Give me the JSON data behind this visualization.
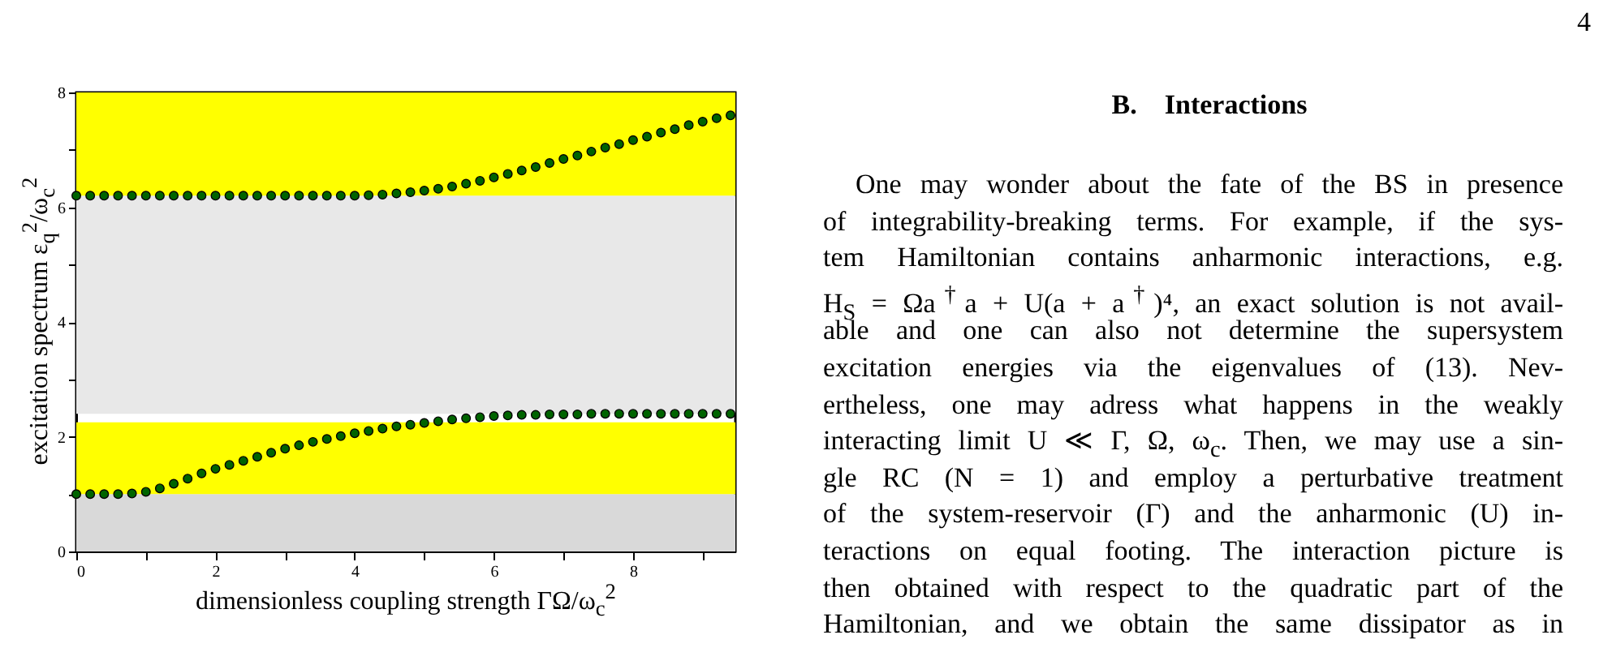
{
  "chart_data": {
    "type": "scatter",
    "xlabel": "dimensionless coupling strength ΓΩ/ω$_{c}$$^{2}$",
    "ylabel": "excitation spectrum ε$_{q}$$^{2}$/ω$_{c}$$^{2}$",
    "xlim": [
      0,
      9.47
    ],
    "ylim": [
      0,
      8
    ],
    "xticks": [
      0,
      {
        "value": 1,
        "label": null
      },
      2,
      {
        "value": 3,
        "label": null
      },
      4,
      {
        "value": 5,
        "label": null
      },
      6,
      {
        "value": 7,
        "label": null
      },
      8,
      {
        "value": 9,
        "label": null
      }
    ],
    "yticks": [
      0,
      {
        "value": 1,
        "label": null
      },
      2,
      {
        "value": 3,
        "label": null
      },
      4,
      {
        "value": 5,
        "label": null
      },
      6,
      {
        "value": 7,
        "label": null
      },
      8
    ],
    "marker": "circle",
    "grid": false,
    "bands": [
      {
        "axis": "y",
        "from": 0,
        "to": 1.0,
        "color": "#d9d9d9"
      },
      {
        "axis": "y",
        "from": 1.0,
        "to": 2.25,
        "color": "#ffff00"
      },
      {
        "axis": "y",
        "from": 2.4,
        "to": 6.2,
        "color": "#e8e8e8"
      },
      {
        "axis": "y",
        "from": 6.2,
        "to": 8,
        "color": "#ffff00"
      }
    ],
    "series": [
      {
        "color": "#006400",
        "x": [
          0,
          0.2,
          0.4,
          0.6,
          0.8,
          1.0,
          1.2,
          1.4,
          1.6,
          1.8,
          2.0,
          2.2,
          2.4,
          2.6,
          2.8,
          3.0,
          3.2,
          3.4,
          3.6,
          3.8,
          4.0,
          4.2,
          4.4,
          4.6,
          4.8,
          5.0,
          5.2,
          5.4,
          5.6,
          5.8,
          6.0,
          6.2,
          6.4,
          6.6,
          6.8,
          7.0,
          7.2,
          7.4,
          7.6,
          7.8,
          8.0,
          8.2,
          8.4,
          8.6,
          8.8,
          9.0,
          9.2,
          9.4
        ],
        "values": [
          1.0,
          1.0,
          1.0,
          1.0,
          1.01,
          1.04,
          1.1,
          1.18,
          1.27,
          1.36,
          1.44,
          1.51,
          1.58,
          1.65,
          1.72,
          1.79,
          1.85,
          1.91,
          1.96,
          2.01,
          2.06,
          2.1,
          2.14,
          2.18,
          2.21,
          2.24,
          2.27,
          2.3,
          2.32,
          2.34,
          2.36,
          2.37,
          2.38,
          2.38,
          2.39,
          2.39,
          2.39,
          2.4,
          2.4,
          2.4,
          2.4,
          2.4,
          2.4,
          2.4,
          2.4,
          2.4,
          2.4,
          2.4
        ]
      },
      {
        "color": "#006400",
        "x": [
          0,
          0.2,
          0.4,
          0.6,
          0.8,
          1.0,
          1.2,
          1.4,
          1.6,
          1.8,
          2.0,
          2.2,
          2.4,
          2.6,
          2.8,
          3.0,
          3.2,
          3.4,
          3.6,
          3.8,
          4.0,
          4.2,
          4.4,
          4.6,
          4.8,
          5.0,
          5.2,
          5.4,
          5.6,
          5.8,
          6.0,
          6.2,
          6.4,
          6.6,
          6.8,
          7.0,
          7.2,
          7.4,
          7.6,
          7.8,
          8.0,
          8.2,
          8.4,
          8.6,
          8.8,
          9.0,
          9.2,
          9.4
        ],
        "values": [
          6.2,
          6.2,
          6.2,
          6.2,
          6.2,
          6.2,
          6.2,
          6.2,
          6.2,
          6.2,
          6.2,
          6.2,
          6.2,
          6.2,
          6.2,
          6.2,
          6.2,
          6.2,
          6.2,
          6.2,
          6.2,
          6.21,
          6.22,
          6.24,
          6.26,
          6.29,
          6.32,
          6.36,
          6.41,
          6.46,
          6.52,
          6.58,
          6.64,
          6.7,
          6.77,
          6.84,
          6.9,
          6.97,
          7.04,
          7.1,
          7.17,
          7.23,
          7.3,
          7.36,
          7.43,
          7.49,
          7.55,
          7.6
        ]
      }
    ],
    "annotations": [
      "4",
      "B.    Interactions",
      "One may wonder about the fate of the BS in presence",
      "of integrability-breaking terms. For example, if the sys-",
      "tem Hamiltonian contains anharmonic interactions, e.g.",
      "H$_{S}$ = Ωa$^{†}$a + U(a + a$^{†}$)⁴, an exact solution is not avail-",
      "able and one can also not determine the supersystem",
      "excitation energies via the eigenvalues of (13).  Nev-",
      "ertheless, one may adress what happens in the weakly",
      "interacting limit U ≪ Γ, Ω, ω$_{c}$. Then, we may use a sin-",
      "gle RC (N = 1) and employ a perturbative treatment",
      "of the system-reservoir (Γ) and the anharmonic (U) in-",
      "teractions on equal footing.  The interaction picture is",
      "then obtained with respect to the quadratic part of the",
      "Hamiltonian, and we obtain the same dissipator as in"
    ]
  }
}
